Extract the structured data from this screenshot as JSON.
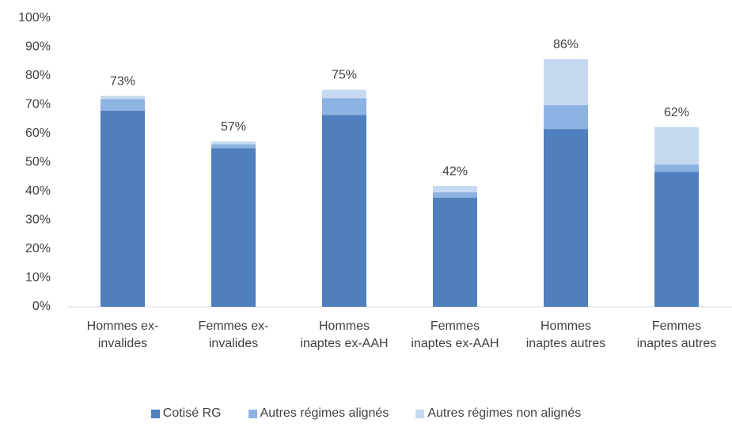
{
  "chart_data": {
    "type": "stacked_bar",
    "categories": [
      "Hommes ex-invalides",
      "Femmes ex-invalides",
      "Hommes inaptes ex-AAH",
      "Femmes inaptes ex-AAH",
      "Hommes inaptes autres",
      "Femmes inaptes autres"
    ],
    "series": [
      {
        "name": "Cotisé RG",
        "color": "#4f7fbc",
        "values": [
          68,
          55,
          66.5,
          37.8,
          61.6,
          46.8
        ]
      },
      {
        "name": "Autres régimes alignés",
        "color": "#8db3e2",
        "values": [
          4,
          1.3,
          5.8,
          1.9,
          8.3,
          2.5
        ]
      },
      {
        "name": "Autres régimes non alignés",
        "color": "#c6d9f1",
        "values": [
          1.1,
          1,
          2.9,
          2.2,
          15.9,
          13
        ]
      }
    ],
    "totals": {
      "values": [
        73.1,
        57.3,
        75.2,
        41.9,
        85.8,
        62.3
      ],
      "value_labels": [
        "73%",
        "57%",
        "75%",
        "42%",
        "86%",
        "62%"
      ]
    },
    "ylim": [
      0,
      100
    ],
    "yticks": [
      {
        "value": 0,
        "label": "0%"
      },
      {
        "value": 10,
        "label": "10%"
      },
      {
        "value": 20,
        "label": "20%"
      },
      {
        "value": 30,
        "label": "30%"
      },
      {
        "value": 40,
        "label": "40%"
      },
      {
        "value": 50,
        "label": "50%"
      },
      {
        "value": 60,
        "label": "60%"
      },
      {
        "value": 70,
        "label": "70%"
      },
      {
        "value": 80,
        "label": "80%"
      },
      {
        "value": 90,
        "label": "90%"
      },
      {
        "value": 100,
        "label": "100%"
      }
    ],
    "grid": false,
    "legend": "bottom"
  }
}
